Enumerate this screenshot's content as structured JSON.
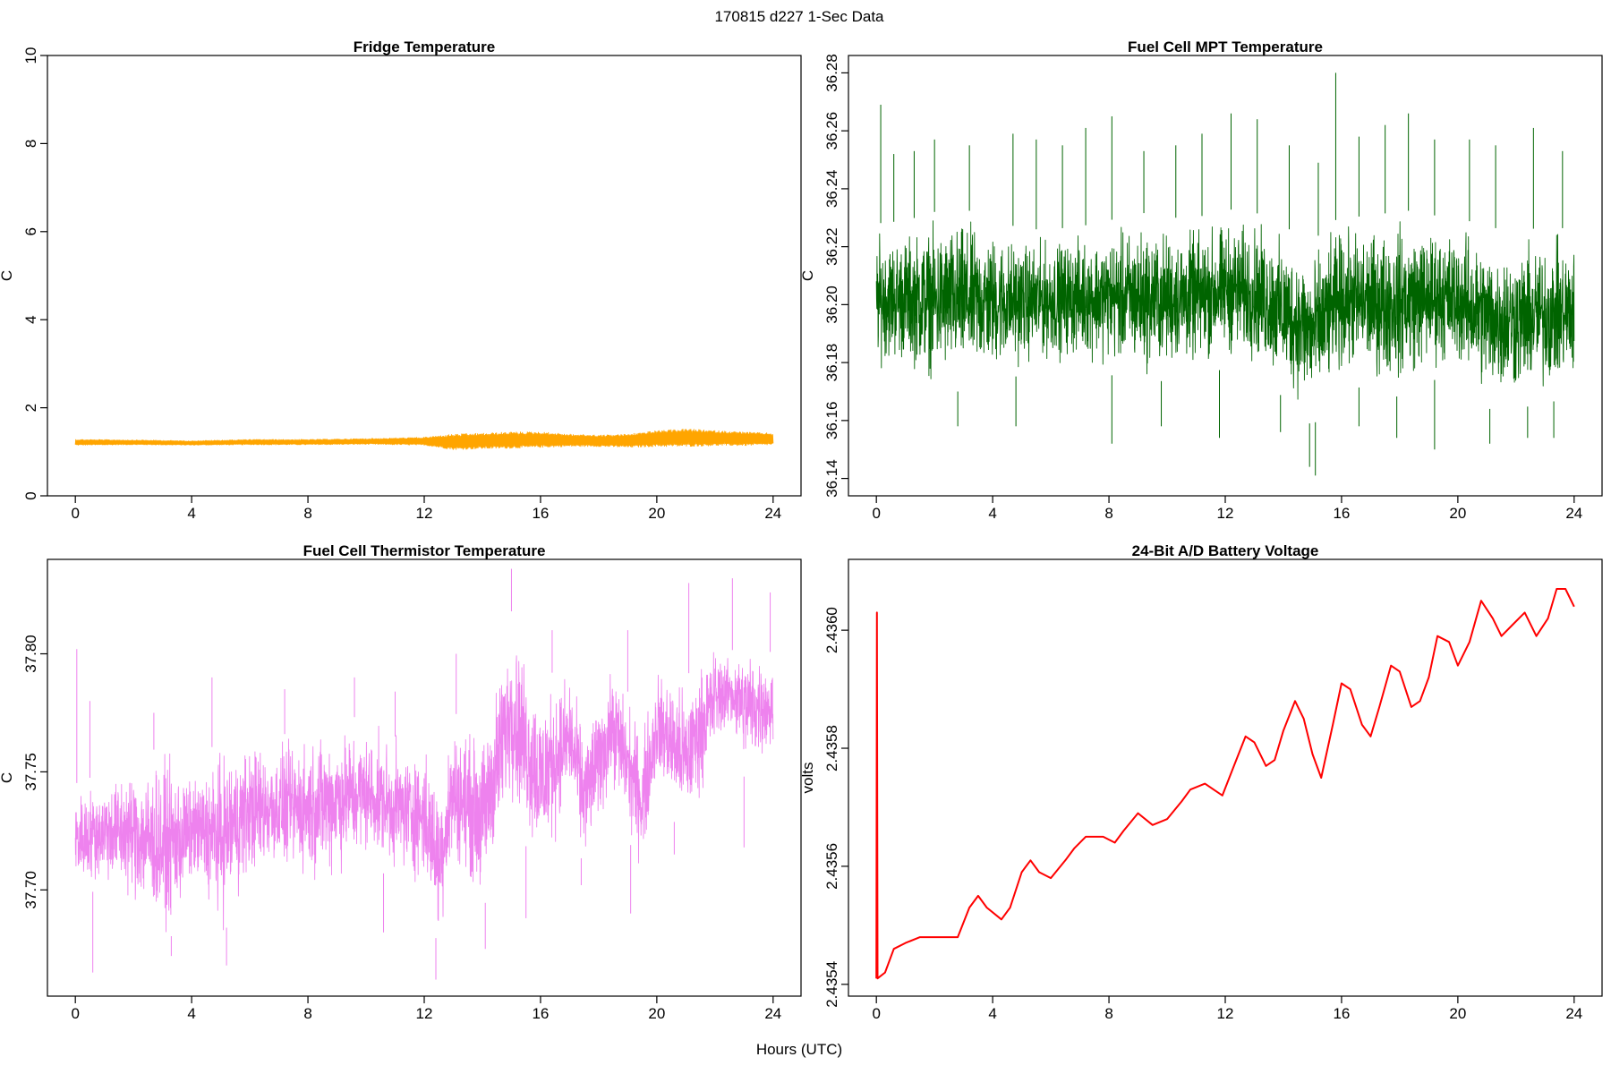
{
  "suptitle": "170815   d227   1-Sec Data",
  "shared_xlabel": "Hours (UTC)",
  "chart_data": [
    {
      "type": "line",
      "title": "Fridge Temperature",
      "xlabel": "",
      "ylabel": "C",
      "color": "#FFA500",
      "xlim": [
        0,
        24
      ],
      "ylim": [
        0,
        10
      ],
      "xticks": [
        0,
        4,
        8,
        12,
        16,
        20,
        24
      ],
      "yticks": [
        0,
        2,
        4,
        6,
        8,
        10
      ],
      "ytick_labels": [
        "0",
        "2",
        "4",
        "6",
        "8",
        "10"
      ],
      "series": [
        {
          "name": "Fridge Temperature",
          "x": [
            0,
            2,
            4,
            6,
            8,
            10,
            12,
            13,
            14,
            15,
            16,
            17,
            18,
            19,
            20,
            21,
            22,
            23,
            24
          ],
          "low": [
            1.15,
            1.16,
            1.15,
            1.16,
            1.16,
            1.17,
            1.15,
            1.05,
            1.07,
            1.08,
            1.1,
            1.12,
            1.12,
            1.1,
            1.12,
            1.12,
            1.14,
            1.14,
            1.16
          ],
          "high": [
            1.28,
            1.27,
            1.25,
            1.28,
            1.28,
            1.3,
            1.33,
            1.4,
            1.42,
            1.45,
            1.45,
            1.4,
            1.38,
            1.4,
            1.48,
            1.52,
            1.48,
            1.45,
            1.42
          ]
        }
      ]
    },
    {
      "type": "line",
      "title": "Fuel Cell MPT Temperature",
      "xlabel": "",
      "ylabel": "C",
      "color": "#006400",
      "xlim": [
        0,
        24
      ],
      "ylim": [
        36.134,
        36.286
      ],
      "xticks": [
        0,
        4,
        8,
        12,
        16,
        20,
        24
      ],
      "yticks": [
        36.14,
        36.16,
        36.18,
        36.2,
        36.22,
        36.24,
        36.26,
        36.28
      ],
      "ytick_labels": [
        "36.14",
        "36.16",
        "36.18",
        "36.20",
        "36.22",
        "36.24",
        "36.26",
        "36.28"
      ],
      "series": [
        {
          "name": "Fuel Cell MPT Temperature",
          "x": [
            0,
            1,
            2,
            3,
            4,
            5,
            6,
            7,
            8,
            9,
            10,
            11,
            12,
            13,
            14,
            15,
            16,
            17,
            18,
            19,
            20,
            21,
            22,
            23,
            24
          ],
          "band_low": [
            36.176,
            36.175,
            36.17,
            36.17,
            36.172,
            36.176,
            36.177,
            36.178,
            36.176,
            36.172,
            36.174,
            36.175,
            36.178,
            36.176,
            36.168,
            36.158,
            36.172,
            36.171,
            36.168,
            36.174,
            36.174,
            36.164,
            36.164,
            36.166,
            36.168
          ],
          "band_high": [
            36.228,
            36.229,
            36.232,
            36.233,
            36.23,
            36.226,
            36.226,
            36.227,
            36.229,
            36.232,
            36.23,
            36.23,
            36.233,
            36.232,
            36.227,
            36.222,
            36.231,
            36.23,
            36.233,
            36.231,
            36.23,
            36.227,
            36.225,
            36.227,
            36.226
          ],
          "spikes": [
            [
              0.15,
              36.269
            ],
            [
              0.6,
              36.252
            ],
            [
              1.3,
              36.253
            ],
            [
              2.0,
              36.257
            ],
            [
              3.2,
              36.255
            ],
            [
              4.7,
              36.259
            ],
            [
              5.5,
              36.257
            ],
            [
              6.4,
              36.255
            ],
            [
              7.2,
              36.261
            ],
            [
              8.1,
              36.265
            ],
            [
              9.2,
              36.253
            ],
            [
              10.3,
              36.255
            ],
            [
              11.2,
              36.259
            ],
            [
              12.2,
              36.266
            ],
            [
              13.1,
              36.264
            ],
            [
              14.2,
              36.255
            ],
            [
              15.2,
              36.249
            ],
            [
              15.8,
              36.28
            ],
            [
              16.6,
              36.258
            ],
            [
              17.5,
              36.262
            ],
            [
              18.3,
              36.266
            ],
            [
              19.2,
              36.257
            ],
            [
              20.4,
              36.257
            ],
            [
              21.3,
              36.255
            ],
            [
              22.6,
              36.261
            ],
            [
              23.6,
              36.253
            ],
            [
              2.8,
              36.158
            ],
            [
              4.8,
              36.158
            ],
            [
              8.1,
              36.152
            ],
            [
              9.8,
              36.158
            ],
            [
              11.8,
              36.154
            ],
            [
              13.9,
              36.156
            ],
            [
              14.9,
              36.144
            ],
            [
              15.1,
              36.141
            ],
            [
              16.6,
              36.158
            ],
            [
              17.9,
              36.154
            ],
            [
              19.2,
              36.15
            ],
            [
              21.1,
              36.152
            ],
            [
              22.4,
              36.154
            ],
            [
              23.3,
              36.154
            ]
          ]
        }
      ]
    },
    {
      "type": "line",
      "title": "Fuel Cell Thermistor Temperature",
      "xlabel": "",
      "ylabel": "C",
      "color": "#EE82EE",
      "xlim": [
        0,
        24
      ],
      "ylim": [
        37.655,
        37.84
      ],
      "xticks": [
        0,
        4,
        8,
        12,
        16,
        20,
        24
      ],
      "yticks": [
        37.7,
        37.75,
        37.8
      ],
      "ytick_labels": [
        "37.70",
        "37.75",
        "37.80"
      ],
      "series": [
        {
          "name": "Fuel Cell Thermistor Temperature",
          "x": [
            0,
            1,
            2,
            3,
            3.5,
            4,
            5,
            6,
            7,
            8,
            9,
            10,
            11,
            12,
            12.5,
            13,
            14,
            15,
            16,
            17,
            17.5,
            18.5,
            19.5,
            20,
            21,
            22,
            22.5,
            23,
            24
          ],
          "band_low": [
            37.698,
            37.7,
            37.69,
            37.678,
            37.682,
            37.7,
            37.68,
            37.7,
            37.705,
            37.7,
            37.702,
            37.71,
            37.705,
            37.698,
            37.675,
            37.708,
            37.69,
            37.735,
            37.702,
            37.735,
            37.708,
            37.74,
            37.705,
            37.742,
            37.72,
            37.755,
            37.768,
            37.748,
            37.755
          ],
          "band_high": [
            37.745,
            37.75,
            37.758,
            37.76,
            37.76,
            37.75,
            37.765,
            37.768,
            37.765,
            37.77,
            37.775,
            37.772,
            37.765,
            37.765,
            37.75,
            37.775,
            37.77,
            37.818,
            37.79,
            37.795,
            37.772,
            37.798,
            37.77,
            37.798,
            37.79,
            37.808,
            37.8,
            37.808,
            37.8
          ],
          "spikes": [
            [
              0.05,
              37.802
            ],
            [
              0.5,
              37.78
            ],
            [
              2.7,
              37.775
            ],
            [
              4.7,
              37.79
            ],
            [
              7.2,
              37.785
            ],
            [
              9.6,
              37.79
            ],
            [
              11.0,
              37.784
            ],
            [
              13.1,
              37.8
            ],
            [
              15.0,
              37.836
            ],
            [
              16.4,
              37.81
            ],
            [
              19.0,
              37.81
            ],
            [
              21.1,
              37.83
            ],
            [
              22.6,
              37.832
            ],
            [
              23.9,
              37.826
            ],
            [
              0.6,
              37.665
            ],
            [
              3.3,
              37.672
            ],
            [
              5.2,
              37.668
            ],
            [
              10.6,
              37.682
            ],
            [
              12.4,
              37.662
            ],
            [
              14.1,
              37.675
            ],
            [
              15.5,
              37.688
            ],
            [
              17.4,
              37.702
            ],
            [
              19.1,
              37.69
            ],
            [
              20.6,
              37.715
            ],
            [
              23.0,
              37.718
            ]
          ]
        }
      ]
    },
    {
      "type": "line",
      "title": "24-Bit A/D Battery Voltage",
      "xlabel": "",
      "ylabel": "volts",
      "color": "#FF0000",
      "xlim": [
        0,
        24
      ],
      "ylim": [
        2.43538,
        2.43612
      ],
      "xticks": [
        0,
        4,
        8,
        12,
        16,
        20,
        24
      ],
      "yticks": [
        2.4354,
        2.4356,
        2.4358,
        2.436
      ],
      "ytick_labels": [
        "2.4354",
        "2.4356",
        "2.4358",
        "2.4360"
      ],
      "series": [
        {
          "name": "Battery Voltage",
          "x": [
            0,
            0.02,
            0.04,
            0.3,
            0.6,
            1.0,
            1.5,
            2.0,
            2.5,
            2.8,
            3.2,
            3.5,
            3.8,
            4.3,
            4.6,
            5.0,
            5.3,
            5.6,
            6.0,
            6.5,
            6.8,
            7.2,
            7.8,
            8.2,
            8.5,
            9.0,
            9.5,
            10.0,
            10.5,
            10.8,
            11.3,
            11.6,
            11.9,
            12.3,
            12.7,
            13.0,
            13.4,
            13.7,
            14.0,
            14.4,
            14.7,
            15.0,
            15.3,
            15.7,
            16.0,
            16.3,
            16.7,
            17.0,
            17.3,
            17.7,
            18.0,
            18.4,
            18.7,
            19.0,
            19.3,
            19.7,
            20.0,
            20.4,
            20.8,
            21.2,
            21.5,
            21.9,
            22.3,
            22.7,
            23.1,
            23.4,
            23.7,
            24.0
          ],
          "y": [
            2.43541,
            2.43603,
            2.43541,
            2.43542,
            2.43546,
            2.43547,
            2.43548,
            2.43548,
            2.43548,
            2.43548,
            2.43553,
            2.43555,
            2.43553,
            2.43551,
            2.43553,
            2.43559,
            2.43561,
            2.43559,
            2.43558,
            2.43561,
            2.43563,
            2.43565,
            2.43565,
            2.43564,
            2.43566,
            2.43569,
            2.43567,
            2.43568,
            2.43571,
            2.43573,
            2.43574,
            2.43573,
            2.43572,
            2.43577,
            2.43582,
            2.43581,
            2.43577,
            2.43578,
            2.43583,
            2.43588,
            2.43585,
            2.43579,
            2.43575,
            2.43584,
            2.43591,
            2.4359,
            2.43584,
            2.43582,
            2.43587,
            2.43594,
            2.43593,
            2.43587,
            2.43588,
            2.43592,
            2.43599,
            2.43598,
            2.43594,
            2.43598,
            2.43605,
            2.43602,
            2.43599,
            2.43601,
            2.43603,
            2.43599,
            2.43602,
            2.43607,
            2.43607,
            2.43604
          ]
        }
      ]
    }
  ]
}
